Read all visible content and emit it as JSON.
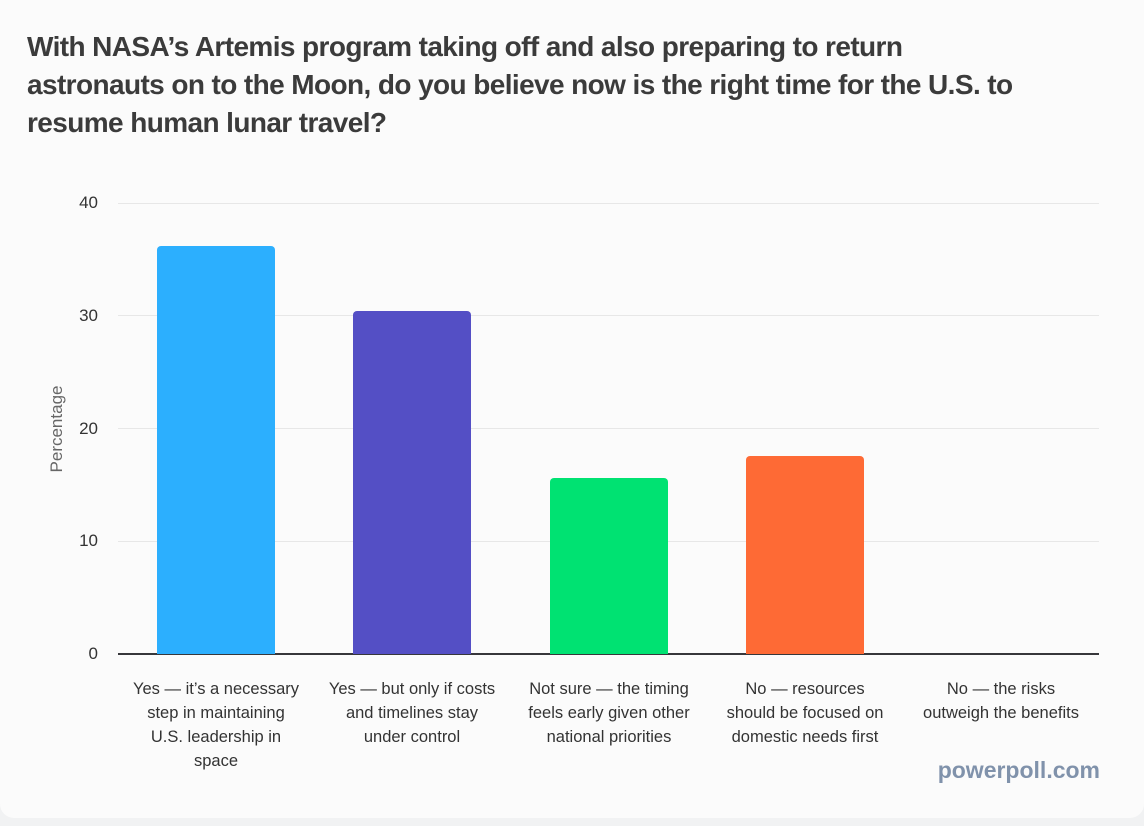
{
  "page": {
    "question": "With NASA’s Artemis program taking off and also preparing to return astronauts on to the Moon, do you believe now is the right time for the U.S. to resume human lunar travel?",
    "question_lines": [
      "With NASA’s Artemis program taking off and also preparing to return",
      "astronauts on to the Moon, do you believe now is the right time for the U.S. to",
      "resume human lunar travel?"
    ],
    "branding": "powerpoll.com"
  },
  "chart_data": {
    "type": "bar",
    "title": "",
    "xlabel": "",
    "ylabel": "Percentage",
    "ylim": [
      0,
      40
    ],
    "yticks": [
      0,
      10,
      20,
      30,
      40
    ],
    "grid": true,
    "legend": false,
    "categories": [
      "Yes — it’s a necessary step in maintaining U.S. leadership in space",
      "Yes — but only if costs and timelines stay under control",
      "Not sure — the timing feels early given other national priorities",
      "No — resources should be focused on domestic needs first",
      "No — the risks outweigh the benefits"
    ],
    "values": [
      36.2,
      30.4,
      15.6,
      17.6,
      0
    ],
    "bar_colors": [
      "#2caffe",
      "#544fc5",
      "#00e272",
      "#fe6a35",
      "#6b8abc"
    ]
  },
  "colors": {
    "title_text": "#3b3b3b",
    "axis_line": "#37373b",
    "grid_line": "#e7e7e7",
    "tick_text": "#333333",
    "category_text": "#333333",
    "ylabel_text": "#666666",
    "branding_text": "#8092ab",
    "card_bg": "#fbfbfb",
    "page_bg": "#f1f2f3"
  }
}
